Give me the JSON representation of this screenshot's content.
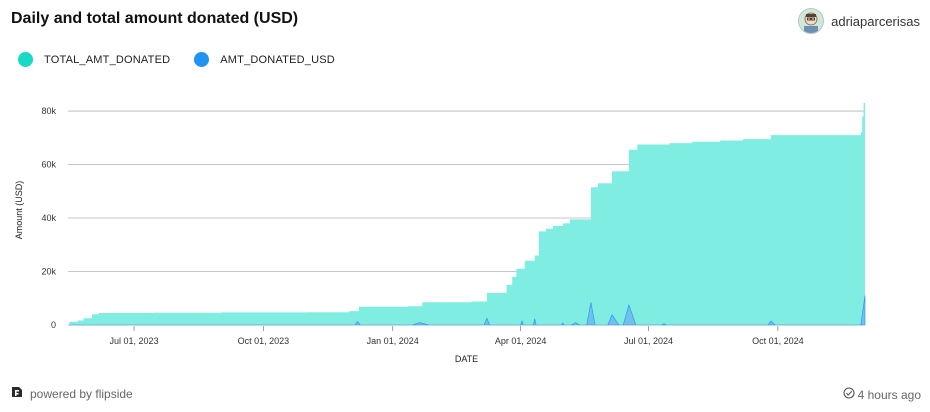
{
  "header": {
    "title": "Daily and total amount donated (USD)",
    "username": "adriaparcerisas"
  },
  "footer": {
    "powered_by": "powered by flipside",
    "updated": "4 hours ago"
  },
  "colors": {
    "total": "#80ede3",
    "total_legend": "#16d9c6",
    "daily": "#1f93f2",
    "daily_fill": "#6fb6ef",
    "grid": "#b5b5b5"
  },
  "icons": {
    "brand": "flipside-logo-icon",
    "updated": "check-circle-icon",
    "avatar": "user-avatar-icon"
  },
  "chart_data": {
    "type": "area",
    "xlabel": "DATE",
    "ylabel": "Amount (USD)",
    "ylim": [
      0,
      86000
    ],
    "y_ticks": [
      0,
      20000,
      40000,
      60000,
      80000
    ],
    "y_tick_labels": [
      "0",
      "20k",
      "40k",
      "60k",
      "80k"
    ],
    "x_range": [
      "2023-05-15",
      "2024-12-02"
    ],
    "x_ticks": [
      "2023-07-01",
      "2023-10-01",
      "2024-01-01",
      "2024-04-01",
      "2024-07-01",
      "2024-10-01"
    ],
    "x_tick_labels": [
      "Jul 01, 2023",
      "Oct 01, 2023",
      "Jan 01, 2024",
      "Apr 01, 2024",
      "Jul 01, 2024",
      "Oct 01, 2024"
    ],
    "grid": true,
    "legend_position": "top-left",
    "series": [
      {
        "name": "TOTAL_AMT_DONATED",
        "step": true,
        "points": [
          [
            "2023-05-15",
            0
          ],
          [
            "2023-05-16",
            1200
          ],
          [
            "2023-05-22",
            1700
          ],
          [
            "2023-05-26",
            2500
          ],
          [
            "2023-06-01",
            4000
          ],
          [
            "2023-06-06",
            4500
          ],
          [
            "2023-07-15",
            4600
          ],
          [
            "2023-09-01",
            4700
          ],
          [
            "2023-11-01",
            4800
          ],
          [
            "2023-12-01",
            5200
          ],
          [
            "2023-12-08",
            6800
          ],
          [
            "2024-01-12",
            7000
          ],
          [
            "2024-01-22",
            8500
          ],
          [
            "2024-02-26",
            8800
          ],
          [
            "2024-03-08",
            12000
          ],
          [
            "2024-03-22",
            15000
          ],
          [
            "2024-03-26",
            18000
          ],
          [
            "2024-03-29",
            21000
          ],
          [
            "2024-04-04",
            24000
          ],
          [
            "2024-04-11",
            26000
          ],
          [
            "2024-04-14",
            35000
          ],
          [
            "2024-04-19",
            36000
          ],
          [
            "2024-04-24",
            37000
          ],
          [
            "2024-05-01",
            38000
          ],
          [
            "2024-05-06",
            39500
          ],
          [
            "2024-05-21",
            51500
          ],
          [
            "2024-05-26",
            53000
          ],
          [
            "2024-06-05",
            57500
          ],
          [
            "2024-06-17",
            65500
          ],
          [
            "2024-06-23",
            67500
          ],
          [
            "2024-07-16",
            68000
          ],
          [
            "2024-08-01",
            68500
          ],
          [
            "2024-08-21",
            69000
          ],
          [
            "2024-09-06",
            69500
          ],
          [
            "2024-09-26",
            71000
          ],
          [
            "2024-11-29",
            72000
          ],
          [
            "2024-11-30",
            78000
          ],
          [
            "2024-12-01",
            83000
          ],
          [
            "2024-12-02",
            86000
          ]
        ]
      },
      {
        "name": "AMT_DONATED_USD",
        "step": false,
        "points": [
          [
            "2023-05-15",
            0
          ],
          [
            "2023-12-05",
            0
          ],
          [
            "2023-12-07",
            1300
          ],
          [
            "2023-12-09",
            0
          ],
          [
            "2024-01-15",
            0
          ],
          [
            "2024-01-20",
            900
          ],
          [
            "2024-01-24",
            400
          ],
          [
            "2024-01-27",
            0
          ],
          [
            "2024-03-06",
            0
          ],
          [
            "2024-03-08",
            2500
          ],
          [
            "2024-03-10",
            0
          ],
          [
            "2024-04-01",
            0
          ],
          [
            "2024-04-02",
            1500
          ],
          [
            "2024-04-03",
            0
          ],
          [
            "2024-04-10",
            0
          ],
          [
            "2024-04-11",
            2300
          ],
          [
            "2024-04-12",
            0
          ],
          [
            "2024-04-30",
            0
          ],
          [
            "2024-05-01",
            800
          ],
          [
            "2024-05-02",
            0
          ],
          [
            "2024-05-07",
            0
          ],
          [
            "2024-05-10",
            900
          ],
          [
            "2024-05-13",
            0
          ],
          [
            "2024-05-18",
            0
          ],
          [
            "2024-05-21",
            8500
          ],
          [
            "2024-05-24",
            0
          ],
          [
            "2024-06-02",
            0
          ],
          [
            "2024-06-05",
            3800
          ],
          [
            "2024-06-10",
            0
          ],
          [
            "2024-06-13",
            0
          ],
          [
            "2024-06-17",
            7500
          ],
          [
            "2024-06-22",
            0
          ],
          [
            "2024-07-10",
            0
          ],
          [
            "2024-07-12",
            500
          ],
          [
            "2024-07-14",
            0
          ],
          [
            "2024-09-24",
            0
          ],
          [
            "2024-09-26",
            1500
          ],
          [
            "2024-09-29",
            0
          ],
          [
            "2024-11-29",
            0
          ],
          [
            "2024-12-02",
            11000
          ]
        ]
      }
    ]
  }
}
